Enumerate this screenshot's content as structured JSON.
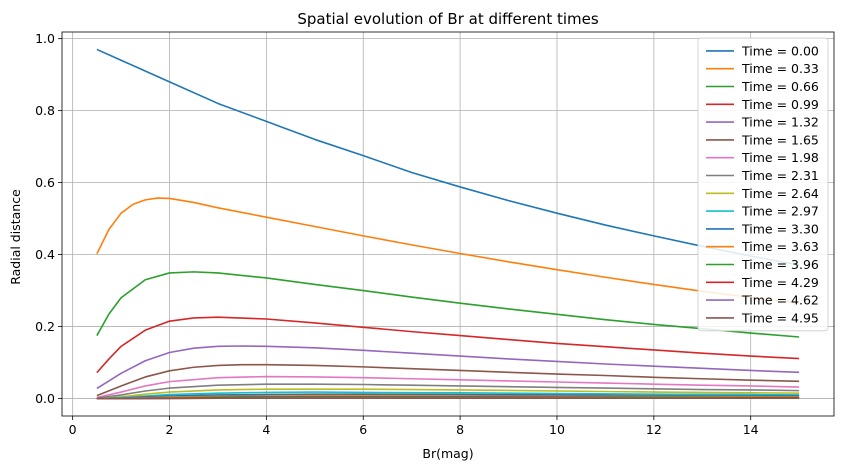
{
  "chart_data": {
    "type": "line",
    "title": "Spatial evolution of Br at different times",
    "xlabel": "Br(mag)",
    "ylabel": "Radial distance",
    "xlim": [
      -0.22,
      15.72
    ],
    "ylim": [
      -0.0485,
      1.0185
    ],
    "xticks": [
      0,
      2,
      4,
      6,
      8,
      10,
      12,
      14
    ],
    "xtick_labels": [
      "0",
      "2",
      "4",
      "6",
      "8",
      "10",
      "12",
      "14"
    ],
    "yticks": [
      0.0,
      0.2,
      0.4,
      0.6,
      0.8,
      1.0
    ],
    "ytick_labels": [
      "0.0",
      "0.2",
      "0.4",
      "0.6",
      "0.8",
      "1.0"
    ],
    "grid": true,
    "legend_position": "top-right",
    "x_range": [
      0.5,
      15.0
    ],
    "series": [
      {
        "name": "Time = 0.00",
        "color": "#1f77b4",
        "x": [
          0.5,
          1,
          2,
          3,
          4,
          5,
          6,
          7,
          8,
          9,
          10,
          11,
          12,
          13,
          14,
          15
        ],
        "y": [
          0.97,
          0.94,
          0.88,
          0.82,
          0.77,
          0.72,
          0.675,
          0.628,
          0.588,
          0.55,
          0.515,
          0.482,
          0.452,
          0.423,
          0.396,
          0.371
        ]
      },
      {
        "name": "Time = 0.33",
        "color": "#ff7f0e",
        "x": [
          0.5,
          0.75,
          1,
          1.25,
          1.5,
          1.75,
          2,
          2.5,
          3,
          4,
          5,
          6,
          7,
          8,
          9,
          10,
          11,
          12,
          13,
          14,
          15
        ],
        "y": [
          0.402,
          0.47,
          0.515,
          0.54,
          0.552,
          0.557,
          0.556,
          0.545,
          0.53,
          0.504,
          0.478,
          0.452,
          0.427,
          0.403,
          0.38,
          0.358,
          0.337,
          0.317,
          0.298,
          0.281,
          0.265
        ]
      },
      {
        "name": "Time = 0.66",
        "color": "#2ca02c",
        "x": [
          0.5,
          0.75,
          1,
          1.5,
          2,
          2.5,
          3,
          4,
          5,
          6,
          7,
          8,
          9,
          10,
          11,
          12,
          13,
          14,
          15
        ],
        "y": [
          0.175,
          0.235,
          0.28,
          0.33,
          0.349,
          0.352,
          0.349,
          0.335,
          0.317,
          0.3,
          0.282,
          0.265,
          0.249,
          0.234,
          0.219,
          0.206,
          0.194,
          0.182,
          0.171
        ]
      },
      {
        "name": "Time = 0.99",
        "color": "#d62728",
        "x": [
          0.5,
          0.75,
          1,
          1.5,
          2,
          2.5,
          3,
          4,
          5,
          6,
          7,
          8,
          9,
          10,
          11,
          12,
          13,
          14,
          15
        ],
        "y": [
          0.072,
          0.11,
          0.145,
          0.19,
          0.215,
          0.224,
          0.226,
          0.221,
          0.21,
          0.198,
          0.186,
          0.175,
          0.164,
          0.153,
          0.144,
          0.135,
          0.126,
          0.118,
          0.111
        ]
      },
      {
        "name": "Time = 1.32",
        "color": "#9467bd",
        "x": [
          0.5,
          1,
          1.5,
          2,
          2.5,
          3,
          3.5,
          4,
          5,
          6,
          7,
          8,
          9,
          10,
          11,
          12,
          13,
          14,
          15
        ],
        "y": [
          0.028,
          0.07,
          0.105,
          0.128,
          0.14,
          0.145,
          0.146,
          0.145,
          0.141,
          0.134,
          0.126,
          0.118,
          0.11,
          0.103,
          0.096,
          0.09,
          0.084,
          0.078,
          0.073
        ]
      },
      {
        "name": "Time = 1.65",
        "color": "#8c564b",
        "x": [
          0.5,
          1,
          1.5,
          2,
          2.5,
          3,
          3.5,
          4,
          5,
          6,
          7,
          8,
          9,
          10,
          11,
          12,
          13,
          14,
          15
        ],
        "y": [
          0.008,
          0.035,
          0.06,
          0.077,
          0.087,
          0.092,
          0.094,
          0.094,
          0.092,
          0.088,
          0.083,
          0.078,
          0.073,
          0.068,
          0.064,
          0.059,
          0.055,
          0.051,
          0.048
        ]
      },
      {
        "name": "Time = 1.98",
        "color": "#e377c2",
        "x": [
          0.5,
          1,
          1.5,
          2,
          3,
          4,
          5,
          6,
          7,
          8,
          9,
          10,
          11,
          12,
          13,
          14,
          15
        ],
        "y": [
          0.003,
          0.018,
          0.035,
          0.047,
          0.058,
          0.061,
          0.06,
          0.058,
          0.055,
          0.052,
          0.049,
          0.046,
          0.043,
          0.04,
          0.037,
          0.035,
          0.032
        ]
      },
      {
        "name": "Time = 2.31",
        "color": "#7f7f7f",
        "x": [
          0.5,
          1,
          1.5,
          2,
          3,
          4,
          5,
          6,
          7,
          8,
          9,
          10,
          11,
          12,
          13,
          14,
          15
        ],
        "y": [
          0.001,
          0.01,
          0.021,
          0.029,
          0.037,
          0.04,
          0.04,
          0.039,
          0.037,
          0.035,
          0.033,
          0.031,
          0.029,
          0.027,
          0.025,
          0.024,
          0.022
        ]
      },
      {
        "name": "Time = 2.64",
        "color": "#bcbd22",
        "x": [
          0.5,
          1,
          1.5,
          2,
          3,
          4,
          5,
          6,
          8,
          10,
          12,
          14,
          15
        ],
        "y": [
          0.0,
          0.005,
          0.012,
          0.018,
          0.024,
          0.026,
          0.026,
          0.026,
          0.024,
          0.021,
          0.018,
          0.016,
          0.015
        ]
      },
      {
        "name": "Time = 2.97",
        "color": "#17becf",
        "x": [
          0.5,
          1,
          1.5,
          2,
          3,
          4,
          5,
          6,
          8,
          10,
          12,
          14,
          15
        ],
        "y": [
          0.0,
          0.003,
          0.007,
          0.011,
          0.015,
          0.017,
          0.018,
          0.017,
          0.016,
          0.014,
          0.012,
          0.011,
          0.01
        ]
      },
      {
        "name": "Time = 3.30",
        "color": "#1f77b4",
        "x": [
          0.5,
          1,
          1.5,
          2,
          3,
          4,
          5,
          6,
          8,
          10,
          12,
          14,
          15
        ],
        "y": [
          0.0,
          0.001,
          0.004,
          0.007,
          0.01,
          0.011,
          0.012,
          0.012,
          0.011,
          0.01,
          0.008,
          0.007,
          0.007
        ]
      },
      {
        "name": "Time = 3.63",
        "color": "#ff7f0e",
        "x": [
          0.5,
          1,
          1.5,
          2,
          3,
          4,
          5,
          6,
          8,
          10,
          12,
          14,
          15
        ],
        "y": [
          0.0,
          0.001,
          0.002,
          0.004,
          0.006,
          0.007,
          0.008,
          0.008,
          0.007,
          0.006,
          0.006,
          0.005,
          0.005
        ]
      },
      {
        "name": "Time = 3.96",
        "color": "#2ca02c",
        "x": [
          0.5,
          1,
          1.5,
          2,
          3,
          4,
          5,
          6,
          8,
          10,
          12,
          14,
          15
        ],
        "y": [
          0.0,
          0.0,
          0.001,
          0.002,
          0.004,
          0.005,
          0.005,
          0.005,
          0.005,
          0.004,
          0.004,
          0.003,
          0.003
        ]
      },
      {
        "name": "Time = 4.29",
        "color": "#d62728",
        "x": [
          0.5,
          1,
          1.5,
          2,
          3,
          4,
          5,
          6,
          8,
          10,
          12,
          14,
          15
        ],
        "y": [
          0.0,
          0.0,
          0.001,
          0.001,
          0.002,
          0.003,
          0.003,
          0.003,
          0.003,
          0.003,
          0.002,
          0.002,
          0.002
        ]
      },
      {
        "name": "Time = 4.62",
        "color": "#9467bd",
        "x": [
          0.5,
          1,
          1.5,
          2,
          3,
          4,
          5,
          6,
          8,
          10,
          12,
          14,
          15
        ],
        "y": [
          0.0,
          0.0,
          0.0,
          0.001,
          0.001,
          0.002,
          0.002,
          0.002,
          0.002,
          0.002,
          0.002,
          0.001,
          0.001
        ]
      },
      {
        "name": "Time = 4.95",
        "color": "#8c564b",
        "x": [
          0.5,
          1,
          1.5,
          2,
          3,
          4,
          5,
          6,
          8,
          10,
          12,
          14,
          15
        ],
        "y": [
          0.0,
          0.0,
          0.0,
          0.0,
          0.001,
          0.001,
          0.001,
          0.001,
          0.001,
          0.001,
          0.001,
          0.001,
          0.001
        ]
      }
    ]
  }
}
